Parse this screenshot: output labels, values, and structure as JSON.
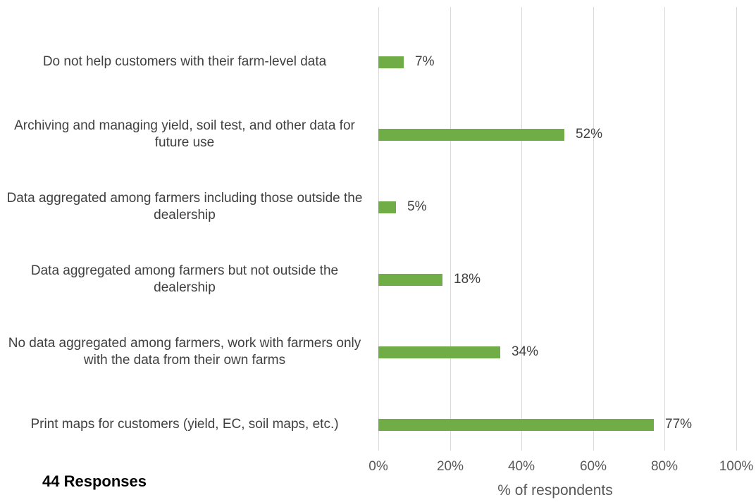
{
  "chart_data": {
    "type": "bar",
    "orientation": "horizontal",
    "categories": [
      "Do not help customers with their farm-level data",
      "Archiving and managing yield, soil test, and other data for future use",
      "Data aggregated among farmers including those outside the dealership",
      "Data aggregated among farmers but not outside the dealership",
      "No data aggregated among farmers, work with farmers only with the data from their own farms",
      "Print maps for customers (yield, EC, soil maps, etc.)"
    ],
    "values": [
      7,
      52,
      5,
      18,
      34,
      77
    ],
    "value_labels": [
      "7%",
      "52%",
      "5%",
      "18%",
      "34%",
      "77%"
    ],
    "xlabel": "% of respondents",
    "xlim": [
      0,
      100
    ],
    "x_ticks": [
      "0%",
      "20%",
      "40%",
      "60%",
      "80%",
      "100%"
    ],
    "grid": true,
    "colors": {
      "bar": "#70ad47",
      "grid": "#d9d9d9"
    }
  },
  "note": "44 Responses"
}
